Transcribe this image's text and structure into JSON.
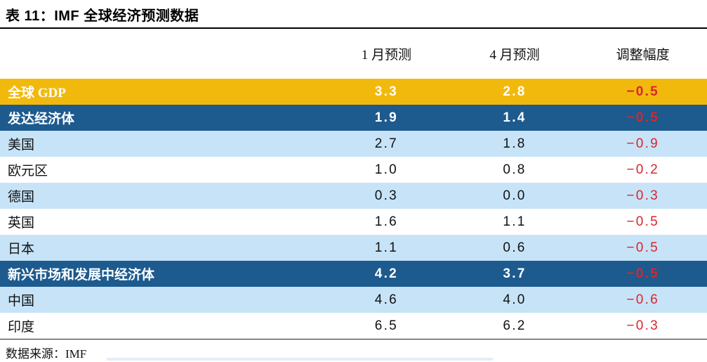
{
  "title": "表 11：IMF 全球经济预测数据",
  "source_note": "数据来源：IMF",
  "colors": {
    "gold": "#F2B90D",
    "darkblue": "#1D5A8E",
    "lightblue": "#C7E3F7",
    "white": "#FFFFFF",
    "negative": "#D8262C"
  },
  "table": {
    "columns": [
      "",
      "1 月预测",
      "4 月预测",
      "调整幅度"
    ],
    "rows": [
      {
        "label": "全球 GDP",
        "jan": "3.3",
        "apr": "2.8",
        "adj": "−0.5",
        "style": "gold"
      },
      {
        "label": "发达经济体",
        "jan": "1.9",
        "apr": "1.4",
        "adj": "−0.5",
        "style": "darkblue"
      },
      {
        "label": "美国",
        "jan": "2.7",
        "apr": "1.8",
        "adj": "−0.9",
        "style": "lightblue"
      },
      {
        "label": "欧元区",
        "jan": "1.0",
        "apr": "0.8",
        "adj": "−0.2",
        "style": "white"
      },
      {
        "label": "德国",
        "jan": "0.3",
        "apr": "0.0",
        "adj": "−0.3",
        "style": "lightblue"
      },
      {
        "label": "英国",
        "jan": "1.6",
        "apr": "1.1",
        "adj": "−0.5",
        "style": "white"
      },
      {
        "label": "日本",
        "jan": "1.1",
        "apr": "0.6",
        "adj": "−0.5",
        "style": "lightblue"
      },
      {
        "label": "新兴市场和发展中经济体",
        "jan": "4.2",
        "apr": "3.7",
        "adj": "−0.5",
        "style": "darkblue"
      },
      {
        "label": "中国",
        "jan": "4.6",
        "apr": "4.0",
        "adj": "−0.6",
        "style": "lightblue"
      },
      {
        "label": "印度",
        "jan": "6.5",
        "apr": "6.2",
        "adj": "−0.3",
        "style": "white"
      }
    ]
  },
  "chart_data": {
    "type": "table",
    "title": "表 11：IMF 全球经济预测数据",
    "columns": [
      "",
      "1 月预测",
      "4 月预测",
      "调整幅度"
    ],
    "rows": [
      [
        "全球 GDP",
        3.3,
        2.8,
        -0.5
      ],
      [
        "发达经济体",
        1.9,
        1.4,
        -0.5
      ],
      [
        "美国",
        2.7,
        1.8,
        -0.9
      ],
      [
        "欧元区",
        1.0,
        0.8,
        -0.2
      ],
      [
        "德国",
        0.3,
        0.0,
        -0.3
      ],
      [
        "英国",
        1.6,
        1.1,
        -0.5
      ],
      [
        "日本",
        1.1,
        0.6,
        -0.5
      ],
      [
        "新兴市场和发展中经济体",
        4.2,
        3.7,
        -0.5
      ],
      [
        "中国",
        4.6,
        4.0,
        -0.6
      ],
      [
        "印度",
        6.5,
        6.2,
        -0.3
      ]
    ],
    "highlight_rows": [
      "全球 GDP",
      "发达经济体",
      "新兴市场和发展中经济体"
    ],
    "source": "数据来源：IMF"
  }
}
